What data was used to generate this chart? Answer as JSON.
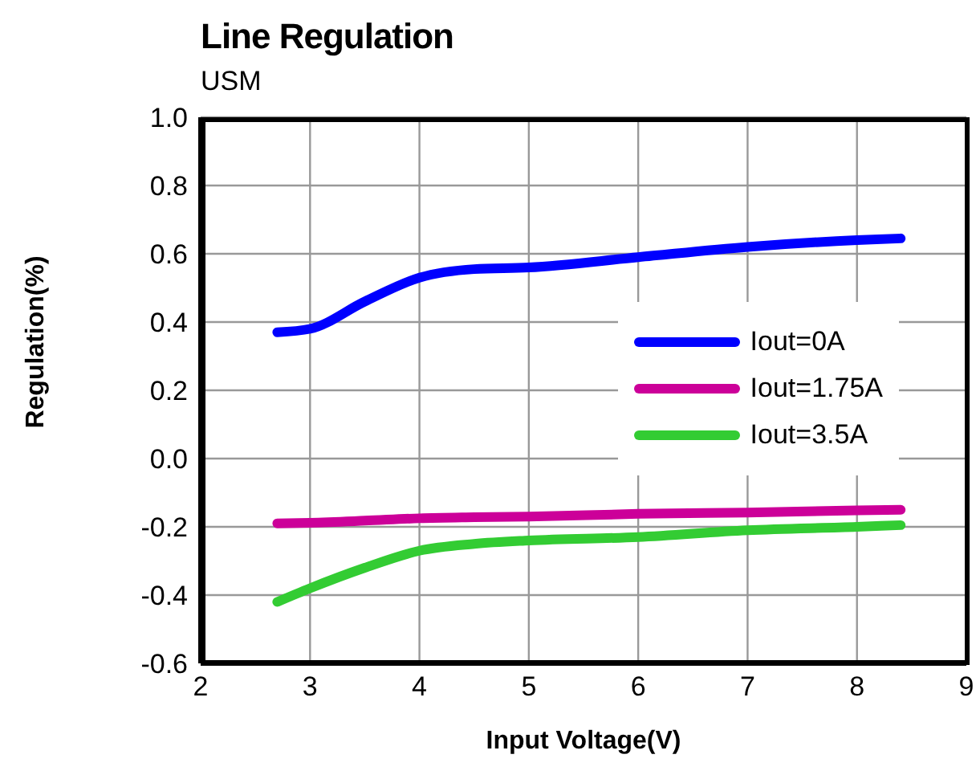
{
  "chart_data": {
    "type": "line",
    "title": "Line Regulation",
    "subtitle": "USM",
    "xlabel": "Input Voltage(V)",
    "ylabel": "Regulation(%)",
    "x": [
      2.7,
      3,
      3.5,
      4,
      4.5,
      5,
      6,
      7,
      8,
      8.4
    ],
    "series": [
      {
        "name": "Iout=0A",
        "color": "#0000ff",
        "values": [
          0.37,
          0.38,
          0.46,
          0.53,
          0.555,
          0.56,
          0.59,
          0.62,
          0.64,
          0.645
        ]
      },
      {
        "name": "Iout=1.75A",
        "color": "#cc0099",
        "values": [
          -0.19,
          -0.188,
          -0.182,
          -0.175,
          -0.172,
          -0.17,
          -0.162,
          -0.158,
          -0.152,
          -0.15
        ]
      },
      {
        "name": "Iout=3.5A",
        "color": "#33cc33",
        "values": [
          -0.42,
          -0.38,
          -0.32,
          -0.27,
          -0.25,
          -0.24,
          -0.23,
          -0.21,
          -0.2,
          -0.195
        ]
      }
    ],
    "xlim": [
      2,
      9
    ],
    "xticks": [
      2,
      3,
      4,
      5,
      6,
      7,
      8,
      9
    ],
    "ylim": [
      -0.6,
      1.0
    ],
    "yticks": [
      -0.6,
      -0.4,
      -0.2,
      {
        "value": 0,
        "label": "0.0"
      },
      0.2,
      0.4,
      0.6,
      0.8,
      {
        "value": 1,
        "label": "1.0"
      }
    ],
    "grid": true,
    "legend": "right",
    "marker": "none",
    "line_style": "solid"
  }
}
